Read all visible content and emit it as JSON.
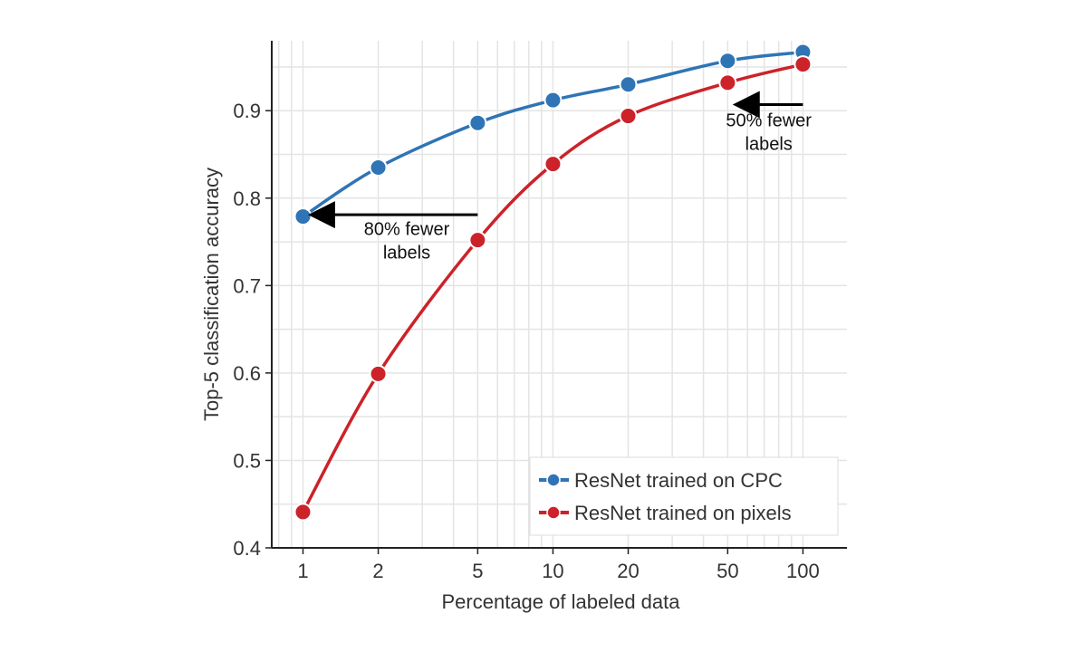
{
  "chart_data": {
    "type": "line",
    "title": "",
    "xlabel": "Percentage of labeled data",
    "ylabel": "Top-5 classification accuracy",
    "xscale": "log",
    "x": [
      1,
      2,
      5,
      10,
      20,
      50,
      100
    ],
    "x_tick_labels": [
      "1",
      "2",
      "5",
      "10",
      "20",
      "50",
      "100"
    ],
    "y_ticks": [
      0.4,
      0.5,
      0.6,
      0.7,
      0.8,
      0.9
    ],
    "y_tick_labels": [
      "0.4",
      "0.5",
      "0.6",
      "0.7",
      "0.8",
      "0.9"
    ],
    "ylim": [
      0.4,
      0.98
    ],
    "xlim": [
      0.75,
      150
    ],
    "grid": true,
    "legend_position": "bottom-right",
    "series": [
      {
        "name": "ResNet trained on CPC",
        "color": "#2f74b5",
        "values": [
          0.779,
          0.835,
          0.886,
          0.912,
          0.93,
          0.957,
          0.967
        ]
      },
      {
        "name": "ResNet trained on pixels",
        "color": "#cc2229",
        "values": [
          0.441,
          0.599,
          0.752,
          0.839,
          0.894,
          0.932,
          0.953
        ]
      }
    ],
    "annotations": [
      {
        "line1": "80% fewer",
        "line2": "labels",
        "arrow_from": [
          5,
          0.781
        ],
        "arrow_to": [
          1.1,
          0.781
        ],
        "text_at": [
          2.6,
          0.758
        ]
      },
      {
        "line1": "50% fewer",
        "line2": "labels",
        "arrow_from": [
          100,
          0.907
        ],
        "arrow_to": [
          55,
          0.907
        ],
        "text_at": [
          73,
          0.882
        ]
      }
    ]
  }
}
